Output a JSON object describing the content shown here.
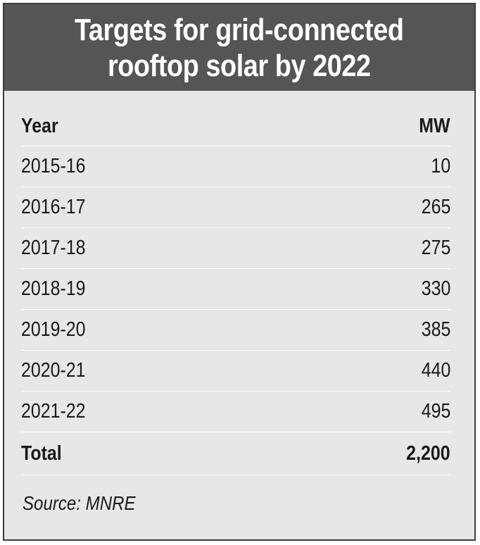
{
  "title": "Targets for grid-connected\nrooftop solar by 2022",
  "columns": [
    "Year",
    "MW"
  ],
  "rows": [
    {
      "year": "2015-16",
      "mw": "10"
    },
    {
      "year": "2016-17",
      "mw": "265"
    },
    {
      "year": "2017-18",
      "mw": "275"
    },
    {
      "year": "2018-19",
      "mw": "330"
    },
    {
      "year": "2019-20",
      "mw": "385"
    },
    {
      "year": "2020-21",
      "mw": "440"
    },
    {
      "year": "2021-22",
      "mw": "495"
    }
  ],
  "total": {
    "label": "Total",
    "mw": "2,200"
  },
  "source": "Source: MNRE",
  "colors": {
    "header_bg": "#555555",
    "panel_bg": "#e7e7e8",
    "border": "#3c3c3c"
  }
}
